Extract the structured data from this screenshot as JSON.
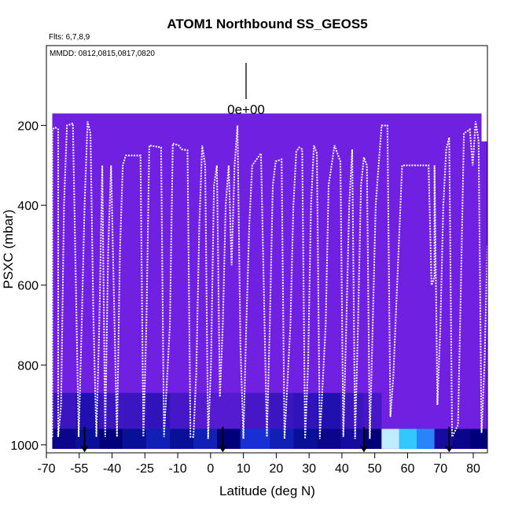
{
  "chart_data": {
    "type": "heatmap",
    "title": "ATOM1 Northbound SS_GEOS5",
    "subtitle": "Flts: 6,7,8,9",
    "annotation": "MMDD: 0812,0815,0817,0820",
    "legend_value": "0e+00",
    "xlabel": "Latitude (deg N)",
    "ylabel": "PSXC (mbar)",
    "x_tick_labels": [
      "-70",
      "-55",
      "-40",
      "-25",
      "-10",
      "0",
      "10",
      "20",
      "30",
      "40",
      "50",
      "60",
      "70",
      "80"
    ],
    "y_ticks": [
      200,
      400,
      600,
      800,
      1000
    ],
    "y_tick_labels": [
      "200",
      "400",
      "600",
      "800",
      "1000"
    ],
    "xlim": [
      -70,
      80
    ],
    "ylim": [
      1020,
      0
    ],
    "heatmap_background": "#7020e0",
    "colors": {
      "background_fill": "#7020e0",
      "flight_track": "#ffffff",
      "low_value": "#00007a",
      "mid_value": "#2040f0",
      "high_value": "#30c8ff",
      "max_value": "#f0f8ff"
    },
    "surface_markers_lat": [
      -57,
      -10,
      38,
      67
    ],
    "surface_layer": [
      {
        "lat0": -68,
        "lat1": -60,
        "value": 0.25
      },
      {
        "lat0": -60,
        "lat1": -52,
        "value": 0.35
      },
      {
        "lat0": -52,
        "lat1": -44,
        "value": 0.3
      },
      {
        "lat0": -44,
        "lat1": -36,
        "value": 0.35
      },
      {
        "lat0": -36,
        "lat1": -28,
        "value": 0.4
      },
      {
        "lat0": -28,
        "lat1": -20,
        "value": 0.35
      },
      {
        "lat0": -20,
        "lat1": -12,
        "value": 0.4
      },
      {
        "lat0": -12,
        "lat1": -4,
        "value": 0.3
      },
      {
        "lat0": -4,
        "lat1": 6,
        "value": 0.45
      },
      {
        "lat0": 6,
        "lat1": 14,
        "value": 0.4
      },
      {
        "lat0": 14,
        "lat1": 22,
        "value": 0.35
      },
      {
        "lat0": 22,
        "lat1": 30,
        "value": 0.25
      },
      {
        "lat0": 30,
        "lat1": 38,
        "value": 0.2
      },
      {
        "lat0": 38,
        "lat1": 44,
        "value": 0.3
      },
      {
        "lat0": 44,
        "lat1": 50,
        "value": 0.95
      },
      {
        "lat0": 50,
        "lat1": 56,
        "value": 0.8
      },
      {
        "lat0": 56,
        "lat1": 62,
        "value": 0.65
      },
      {
        "lat0": 62,
        "lat1": 68,
        "value": 0.2
      },
      {
        "lat0": 68,
        "lat1": 74,
        "value": 0.25
      },
      {
        "lat0": 74,
        "lat1": 80,
        "value": 0.3
      }
    ],
    "boundary_layer": [
      {
        "lat0": -68,
        "lat1": -60,
        "value": 0.1
      },
      {
        "lat0": -60,
        "lat1": -52,
        "value": 0.15
      },
      {
        "lat0": -52,
        "lat1": -44,
        "value": 0.1
      },
      {
        "lat0": -44,
        "lat1": -36,
        "value": 0.1
      },
      {
        "lat0": -36,
        "lat1": -28,
        "value": 0.12
      },
      {
        "lat0": -28,
        "lat1": -20,
        "value": 0.08
      },
      {
        "lat0": -20,
        "lat1": -12,
        "value": 0.05
      },
      {
        "lat0": -12,
        "lat1": -4,
        "value": 0.05
      },
      {
        "lat0": -4,
        "lat1": 6,
        "value": 0.08
      },
      {
        "lat0": 6,
        "lat1": 14,
        "value": 0.1
      },
      {
        "lat0": 14,
        "lat1": 22,
        "value": 0.12
      },
      {
        "lat0": 22,
        "lat1": 30,
        "value": 0.15
      },
      {
        "lat0": 30,
        "lat1": 38,
        "value": 0.1
      },
      {
        "lat0": 38,
        "lat1": 44,
        "value": 0.08
      }
    ],
    "flight_track": [
      [
        -68,
        980
      ],
      [
        -68,
        210
      ],
      [
        -67,
        205
      ],
      [
        -66,
        210
      ],
      [
        -66,
        980
      ],
      [
        -65,
        900
      ],
      [
        -64,
        400
      ],
      [
        -63,
        200
      ],
      [
        -61,
        195
      ],
      [
        -59,
        980
      ],
      [
        -58,
        700
      ],
      [
        -57,
        400
      ],
      [
        -56,
        190
      ],
      [
        -55,
        220
      ],
      [
        -54,
        680
      ],
      [
        -53,
        980
      ],
      [
        -52,
        700
      ],
      [
        -51,
        300
      ],
      [
        -50,
        980
      ],
      [
        -49,
        520
      ],
      [
        -48,
        300
      ],
      [
        -46,
        980
      ],
      [
        -45,
        520
      ],
      [
        -44,
        300
      ],
      [
        -43,
        275
      ],
      [
        -38,
        275
      ],
      [
        -37,
        980
      ],
      [
        -36,
        700
      ],
      [
        -35,
        250
      ],
      [
        -31,
        255
      ],
      [
        -30,
        980
      ],
      [
        -28,
        700
      ],
      [
        -27,
        245
      ],
      [
        -25,
        250
      ],
      [
        -24,
        260
      ],
      [
        -22,
        262
      ],
      [
        -21,
        980
      ],
      [
        -20,
        980
      ],
      [
        -19,
        820
      ],
      [
        -18,
        450
      ],
      [
        -17,
        250
      ],
      [
        -16,
        300
      ],
      [
        -15,
        985
      ],
      [
        -14,
        800
      ],
      [
        -13,
        350
      ],
      [
        -12,
        300
      ],
      [
        -11,
        880
      ],
      [
        -10,
        700
      ],
      [
        -9,
        400
      ],
      [
        -8,
        300
      ],
      [
        -7,
        550
      ],
      [
        -6,
        300
      ],
      [
        -5,
        200
      ],
      [
        -4,
        750
      ],
      [
        -3,
        985
      ],
      [
        -2,
        700
      ],
      [
        -1,
        450
      ],
      [
        0,
        300
      ],
      [
        1,
        290
      ],
      [
        3,
        270
      ],
      [
        5,
        980
      ],
      [
        6,
        700
      ],
      [
        7,
        350
      ],
      [
        8,
        290
      ],
      [
        10,
        285
      ],
      [
        11,
        985
      ],
      [
        13,
        700
      ],
      [
        14,
        400
      ],
      [
        15,
        265
      ],
      [
        16,
        255
      ],
      [
        17,
        260
      ],
      [
        18,
        985
      ],
      [
        19,
        800
      ],
      [
        20,
        400
      ],
      [
        21,
        250
      ],
      [
        22,
        270
      ],
      [
        23,
        985
      ],
      [
        25,
        700
      ],
      [
        26,
        350
      ],
      [
        27,
        300
      ],
      [
        28,
        250
      ],
      [
        30,
        290
      ],
      [
        31,
        980
      ],
      [
        32,
        700
      ],
      [
        33,
        400
      ],
      [
        34,
        260
      ],
      [
        35,
        985
      ],
      [
        36,
        700
      ],
      [
        37,
        350
      ],
      [
        38,
        280
      ],
      [
        39,
        300
      ],
      [
        40,
        985
      ],
      [
        41,
        700
      ],
      [
        42,
        400
      ],
      [
        43,
        300
      ],
      [
        44,
        200
      ],
      [
        46,
        200
      ],
      [
        47,
        930
      ],
      [
        48,
        830
      ],
      [
        49,
        650
      ],
      [
        51,
        300
      ],
      [
        60,
        300
      ],
      [
        61,
        600
      ],
      [
        62,
        580
      ],
      [
        62,
        300
      ],
      [
        63,
        900
      ],
      [
        64,
        700
      ],
      [
        65,
        400
      ],
      [
        66,
        260
      ],
      [
        67,
        230
      ],
      [
        68,
        980
      ],
      [
        70,
        950
      ],
      [
        71,
        600
      ],
      [
        72,
        220
      ],
      [
        74,
        210
      ],
      [
        75,
        300
      ],
      [
        76,
        190
      ],
      [
        77,
        240
      ],
      [
        78,
        970
      ],
      [
        79,
        800
      ],
      [
        80,
        500
      ]
    ]
  }
}
